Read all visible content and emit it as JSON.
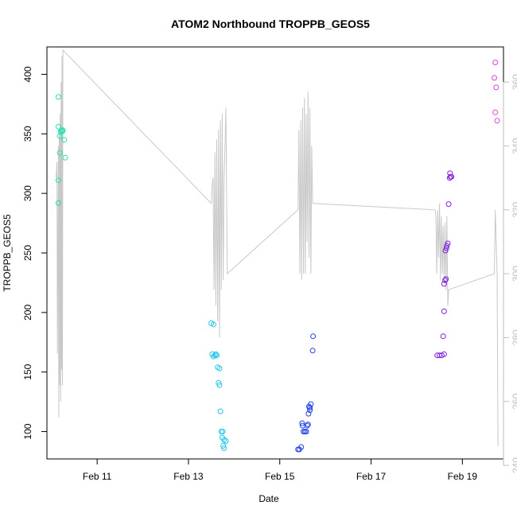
{
  "chart_data": {
    "type": "scatter",
    "title": "ATOM2 Northbound TROPPB_GEOS5",
    "xlabel": "Date",
    "ylabel": "TROPPB_GEOS5",
    "x_unit": "days in February",
    "xlim": [
      9.9,
      19.9
    ],
    "ylim": [
      77,
      423
    ],
    "y2lim": [
      242,
      371
    ],
    "xticks": [
      {
        "value": 11,
        "label": "Feb 11"
      },
      {
        "value": 13,
        "label": "Feb 13"
      },
      {
        "value": 15,
        "label": "Feb 15"
      },
      {
        "value": 17,
        "label": "Feb 17"
      },
      {
        "value": 19,
        "label": "Feb 19"
      }
    ],
    "yticks": [
      100,
      150,
      200,
      250,
      300,
      350,
      400
    ],
    "y2ticks": [
      240,
      260,
      280,
      300,
      320,
      340,
      360
    ],
    "grid": false,
    "legend": "none",
    "series": [
      {
        "color": "#22e0b0",
        "points": [
          [
            10.15,
            381
          ],
          [
            10.15,
            356
          ],
          [
            10.15,
            311
          ],
          [
            10.15,
            292
          ],
          [
            10.18,
            348
          ],
          [
            10.18,
            334
          ],
          [
            10.2,
            352
          ],
          [
            10.22,
            353
          ],
          [
            10.24,
            352
          ],
          [
            10.25,
            353
          ],
          [
            10.28,
            345
          ],
          [
            10.3,
            330
          ]
        ]
      },
      {
        "color": "#22c4e8",
        "points": [
          [
            13.5,
            191
          ],
          [
            13.55,
            190
          ],
          [
            13.52,
            165
          ],
          [
            13.55,
            163
          ],
          [
            13.58,
            164
          ],
          [
            13.6,
            165
          ],
          [
            13.62,
            164
          ],
          [
            13.64,
            154
          ],
          [
            13.68,
            153
          ],
          [
            13.66,
            141
          ],
          [
            13.68,
            139
          ],
          [
            13.7,
            117
          ],
          [
            13.72,
            100
          ],
          [
            13.75,
            100
          ],
          [
            13.74,
            95
          ],
          [
            13.78,
            93
          ],
          [
            13.76,
            88
          ],
          [
            13.78,
            86
          ],
          [
            13.82,
            92
          ]
        ]
      },
      {
        "color": "#2040e0",
        "points": [
          [
            15.4,
            85
          ],
          [
            15.43,
            85
          ],
          [
            15.47,
            87
          ],
          [
            15.49,
            107
          ],
          [
            15.5,
            105
          ],
          [
            15.52,
            100
          ],
          [
            15.55,
            100
          ],
          [
            15.58,
            100
          ],
          [
            15.6,
            105
          ],
          [
            15.62,
            106
          ],
          [
            15.63,
            115
          ],
          [
            15.64,
            121
          ],
          [
            15.66,
            120
          ],
          [
            15.68,
            123
          ],
          [
            15.66,
            118
          ],
          [
            15.72,
            168
          ],
          [
            15.73,
            180
          ]
        ]
      },
      {
        "color": "#8020e0",
        "points": [
          [
            18.45,
            164
          ],
          [
            18.5,
            164
          ],
          [
            18.55,
            164
          ],
          [
            18.6,
            165
          ],
          [
            18.58,
            180
          ],
          [
            18.6,
            201
          ],
          [
            18.6,
            224
          ],
          [
            18.62,
            227
          ],
          [
            18.64,
            228
          ],
          [
            18.63,
            252
          ],
          [
            18.65,
            254
          ],
          [
            18.66,
            256
          ],
          [
            18.68,
            258
          ],
          [
            18.7,
            291
          ],
          [
            18.72,
            313
          ],
          [
            18.74,
            314
          ],
          [
            18.76,
            314
          ],
          [
            18.73,
            317
          ]
        ]
      },
      {
        "color": "#e040e0",
        "points": [
          [
            19.7,
            397
          ],
          [
            19.72,
            410
          ],
          [
            19.74,
            389
          ],
          [
            19.72,
            368
          ],
          [
            19.76,
            361
          ]
        ]
      }
    ],
    "secondary_line": {
      "color": "#c8c8c8",
      "x": [
        10.1,
        10.12,
        10.13,
        10.15,
        10.16,
        10.17,
        10.18,
        10.19,
        10.2,
        10.21,
        10.22,
        10.23,
        10.24,
        10.25,
        13.5,
        13.52,
        13.54,
        13.56,
        13.58,
        13.6,
        13.62,
        13.64,
        13.66,
        13.68,
        13.7,
        13.72,
        13.74,
        13.76,
        13.78,
        13.8,
        13.82,
        13.85,
        15.4,
        15.42,
        15.44,
        15.46,
        15.48,
        15.5,
        15.52,
        15.54,
        15.56,
        15.58,
        15.6,
        15.62,
        15.64,
        15.66,
        15.68,
        15.7,
        15.72,
        18.4,
        18.42,
        18.44,
        18.46,
        18.48,
        18.5,
        18.52,
        18.54,
        18.56,
        18.58,
        18.6,
        18.62,
        18.64,
        18.66,
        18.68,
        18.7,
        19.7,
        19.72,
        19.74,
        19.76,
        19.78
      ],
      "y": [
        330,
        335,
        275,
        340,
        255,
        345,
        265,
        350,
        260,
        360,
        270,
        368,
        265,
        370,
        322,
        328,
        330,
        295,
        338,
        290,
        342,
        285,
        345,
        280,
        348,
        295,
        350,
        298,
        330,
        340,
        352,
        300,
        320,
        345,
        300,
        348,
        298,
        352,
        300,
        355,
        300,
        350,
        310,
        357,
        305,
        352,
        300,
        340,
        322,
        320,
        318,
        300,
        320,
        305,
        322,
        298,
        318,
        300,
        315,
        298,
        316,
        295,
        318,
        290,
        295,
        300,
        320,
        310,
        300,
        246
      ]
    }
  }
}
